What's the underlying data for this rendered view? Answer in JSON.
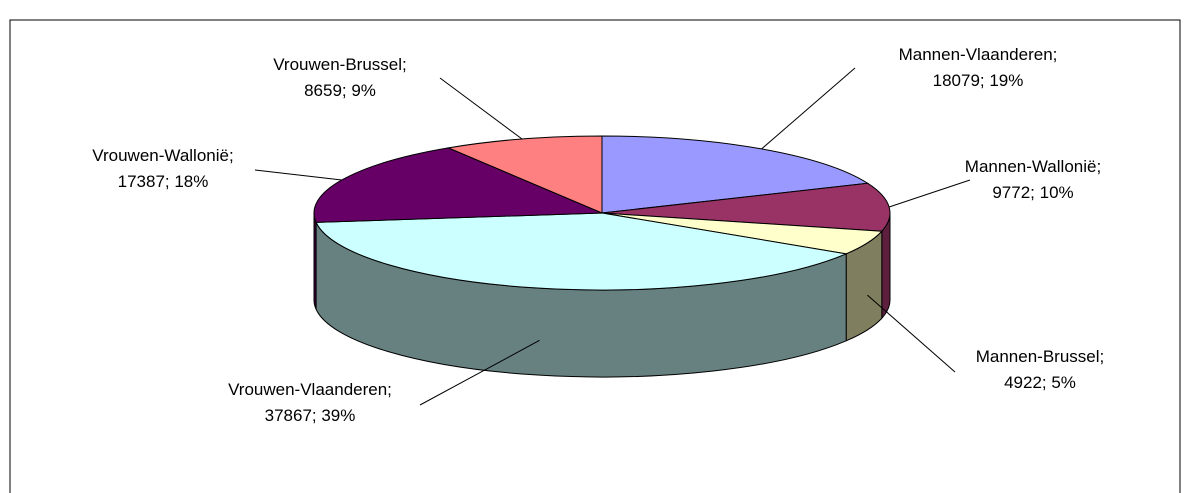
{
  "chart_data": {
    "type": "pie",
    "title": "",
    "slices": [
      {
        "name": "Mannen-Vlaanderen",
        "value": 18079,
        "percent": "19%",
        "label_line1": "Mannen-Vlaanderen;",
        "label_line2": "18079; 19%",
        "color": "#9999FF",
        "side_color": "#5C5C99"
      },
      {
        "name": "Mannen-Wallonië",
        "value": 9772,
        "percent": "10%",
        "label_line1": "Mannen-Wallonië;",
        "label_line2": "9772; 10%",
        "color": "#993366",
        "side_color": "#5C1F3D"
      },
      {
        "name": "Mannen-Brussel",
        "value": 4922,
        "percent": "5%",
        "label_line1": "Mannen-Brussel;",
        "label_line2": "4922; 5%",
        "color": "#FFFFCC",
        "side_color": "#7F7F5F"
      },
      {
        "name": "Vrouwen-Vlaanderen",
        "value": 37867,
        "percent": "39%",
        "label_line1": "Vrouwen-Vlaanderen;",
        "label_line2": "37867; 39%",
        "color": "#CCFFFF",
        "side_color": "#678080"
      },
      {
        "name": "Vrouwen-Wallonië",
        "value": 17387,
        "percent": "18%",
        "label_line1": "Vrouwen-Wallonië;",
        "label_line2": "17387; 18%",
        "color": "#660066",
        "side_color": "#3D003D"
      },
      {
        "name": "Vrouwen-Brussel",
        "value": 8659,
        "percent": "9%",
        "label_line1": "Vrouwen-Brussel;",
        "label_line2": "8659; 9%",
        "color": "#FF8080",
        "side_color": "#994D4D"
      }
    ],
    "legend": "none"
  }
}
